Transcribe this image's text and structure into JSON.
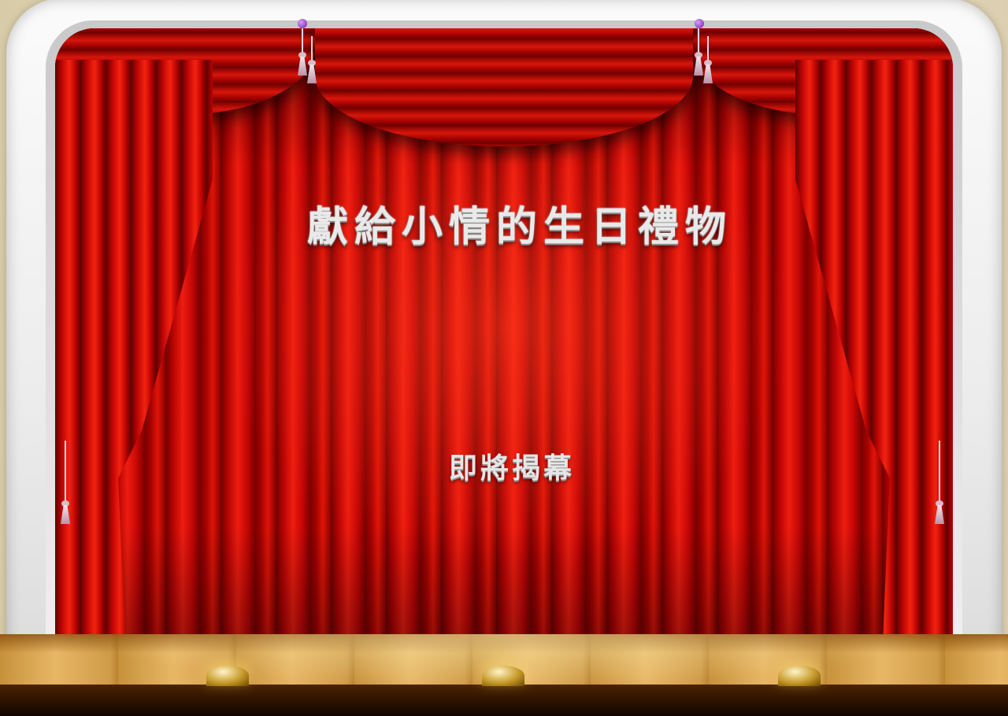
{
  "stage": {
    "title": "獻給小情的生日禮物",
    "subtitle": "即將揭幕"
  },
  "colors": {
    "curtain": "#d80b05",
    "arch": "#f2f2f2",
    "floor": "#d2a04c",
    "text": "#e9e9e9"
  },
  "icons": {
    "tassel": "tassel-icon",
    "footlight": "footlight-icon",
    "finial": "finial-icon"
  }
}
